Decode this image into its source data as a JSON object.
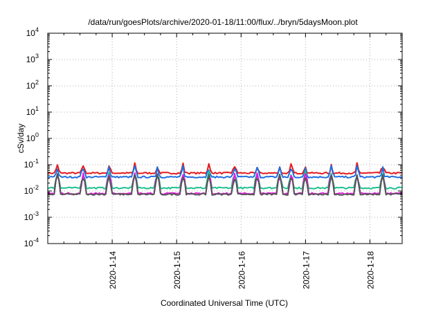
{
  "chart_data": {
    "type": "line",
    "title": "/data/run/goesPlots/archive/2020-01-18/11:00/flux/../bryn/5daysMoon.plot",
    "xlabel": "Coordinated Universal Time (UTC)",
    "ylabel": "cSv/day",
    "y_scale": "log",
    "ylim": [
      0.0001,
      10000
    ],
    "y_ticks": [
      {
        "value": 10000,
        "base": "10",
        "exp": "4"
      },
      {
        "value": 1000,
        "base": "10",
        "exp": "3"
      },
      {
        "value": 100,
        "base": "10",
        "exp": "2"
      },
      {
        "value": 10,
        "base": "10",
        "exp": "1"
      },
      {
        "value": 1,
        "base": "10",
        "exp": "0"
      },
      {
        "value": 0.1,
        "base": "10",
        "exp": "-1"
      },
      {
        "value": 0.01,
        "base": "10",
        "exp": "-2"
      },
      {
        "value": 0.001,
        "base": "10",
        "exp": "-3"
      },
      {
        "value": 0.0001,
        "base": "10",
        "exp": "-4"
      }
    ],
    "xlim": [
      "2020-01-13 00:00",
      "2020-01-18 12:00"
    ],
    "x_ticks": [
      "2020-1-14",
      "2020-1-15",
      "2020-1-16",
      "2020-1-17",
      "2020-1-18"
    ],
    "grid": true,
    "series": [
      {
        "color": "#e31a1c",
        "baseline": 0.048,
        "spike_peak": 0.12,
        "spike_times": [
          0.15,
          0.55,
          0.95,
          1.35,
          1.7,
          2.1,
          2.5,
          2.9,
          3.25,
          3.6,
          3.78,
          4.0,
          4.4,
          4.8,
          5.2
        ]
      },
      {
        "color": "#1f6fe0",
        "baseline": 0.034,
        "spike_peak": 0.1,
        "spike_times": [
          0.15,
          0.55,
          0.95,
          1.35,
          1.7,
          2.1,
          2.5,
          2.9,
          3.25,
          3.6,
          3.78,
          4.0,
          4.4,
          4.8,
          5.2
        ]
      },
      {
        "color": "#1fbf8f",
        "baseline": 0.013,
        "spike_peak": 0.06,
        "spike_times": [
          0.15,
          0.55,
          0.95,
          1.35,
          1.7,
          2.1,
          2.5,
          2.9,
          3.25,
          3.6,
          3.78,
          4.0,
          4.4,
          4.8,
          5.2
        ]
      },
      {
        "color": "#e31ae0",
        "baseline": 0.008,
        "spike_peak": 0.05,
        "spike_times": [
          0.15,
          0.55,
          0.95,
          1.35,
          1.7,
          2.1,
          2.5,
          2.9,
          3.25,
          3.6,
          3.78,
          4.0,
          4.4,
          4.8,
          5.2
        ]
      },
      {
        "color": "#555555",
        "baseline": 0.0075,
        "spike_peak": 0.045,
        "spike_times": [
          0.15,
          0.55,
          0.95,
          1.35,
          1.7,
          2.1,
          2.5,
          2.9,
          3.25,
          3.6,
          3.78,
          4.0,
          4.4,
          4.8,
          5.2
        ]
      }
    ]
  }
}
